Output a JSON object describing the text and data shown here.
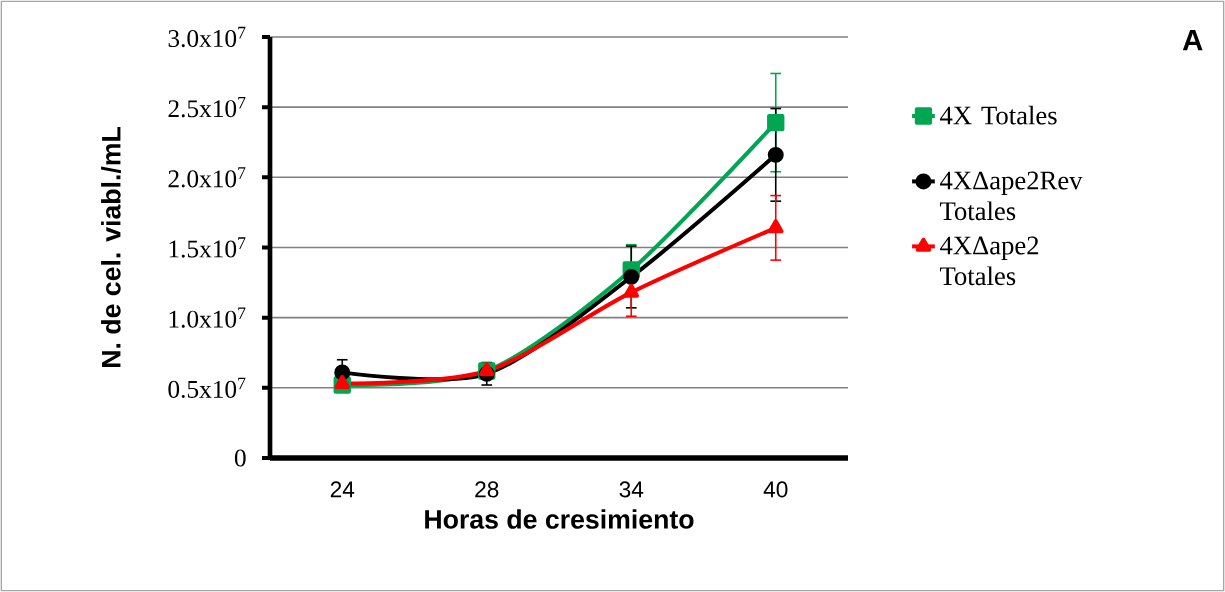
{
  "chart_data": {
    "type": "line",
    "annotations": [
      "A"
    ],
    "xlabel": "Horas de cresimiento",
    "ylabel": "N. de cel. viabl./mL",
    "categories": [
      "24",
      "28",
      "34",
      "40"
    ],
    "ylim": [
      0,
      30000000
    ],
    "yticks": [
      {
        "value": 0,
        "label": "0"
      },
      {
        "value": 5000000,
        "label": "0.5x10$^{7}$"
      },
      {
        "value": 10000000,
        "label": "1.0x10$^{7}$"
      },
      {
        "value": 15000000,
        "label": "1.5x10$^{7}$"
      },
      {
        "value": 20000000,
        "label": "2.0x10$^{7}$"
      },
      {
        "value": 25000000,
        "label": "2.5x10$^{7}$"
      },
      {
        "value": 30000000,
        "label": "3.0x10$^{7}$"
      }
    ],
    "grid": "y",
    "legend": "right",
    "line_style": "solid",
    "series": [
      {
        "name": "4X Totales",
        "color": "#00a651",
        "marker": "square",
        "values": [
          5200000,
          6200000,
          13400000,
          23900000
        ],
        "errors": [
          500000,
          500000,
          1800000,
          3500000
        ]
      },
      {
        "name": "4XΔape2Rev Totales",
        "color": "#000000",
        "marker": "circle",
        "values": [
          6100000,
          6000000,
          12900000,
          21600000
        ],
        "errors": [
          900000,
          800000,
          2200000,
          3300000
        ]
      },
      {
        "name": "4XΔape2 Totales",
        "color": "#ff0000",
        "marker": "triangle",
        "values": [
          5300000,
          6200000,
          11800000,
          16400000
        ],
        "errors": [
          300000,
          500000,
          1700000,
          2300000
        ]
      }
    ]
  }
}
